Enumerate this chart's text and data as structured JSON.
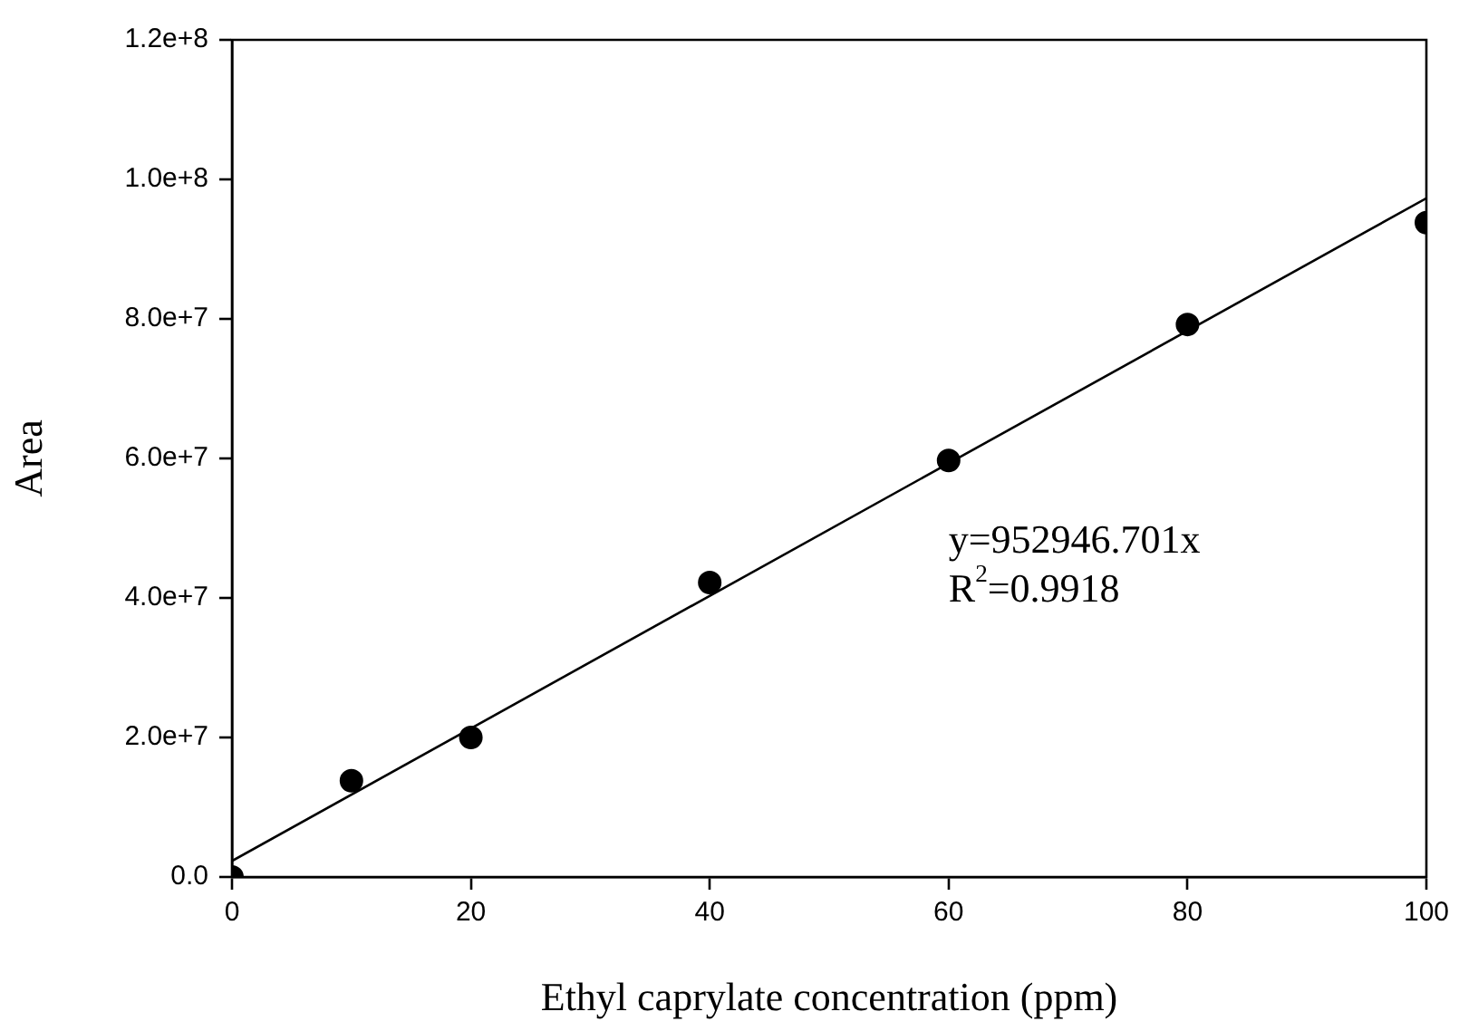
{
  "chart_data": {
    "type": "scatter",
    "xlabel": "Ethyl caprylate concentration (ppm)",
    "ylabel": "Area",
    "x": [
      0,
      10,
      20,
      40,
      60,
      80,
      100
    ],
    "series": [
      {
        "color": "#000000",
        "values": [
          0,
          13800000,
          20000000,
          42200000,
          59700000,
          79200000,
          93800000
        ]
      },
      {
        "type": "line",
        "marker": "none",
        "color": "#000000",
        "x": [
          0,
          100
        ],
        "values": [
          2300000,
          97300000
        ]
      }
    ],
    "marker": "circle",
    "legend": false,
    "grid": false,
    "xlim": [
      0,
      100
    ],
    "xticks": [
      0,
      20,
      40,
      60,
      80,
      100
    ],
    "ylim": [
      0,
      120000000
    ],
    "yticks": [
      {
        "value": 0,
        "label": "0.0"
      },
      {
        "value": 20000000,
        "label": "2.0e+7"
      },
      {
        "value": 40000000,
        "label": "4.0e+7"
      },
      {
        "value": 60000000,
        "label": "6.0e+7"
      },
      {
        "value": 80000000,
        "label": "8.0e+7"
      },
      {
        "value": 100000000,
        "label": "1.0e+8"
      },
      {
        "value": 120000000,
        "label": "1.2e+8"
      }
    ],
    "annotations": [
      "y=952946.701x",
      "R$^{2}$=0.9918"
    ]
  }
}
